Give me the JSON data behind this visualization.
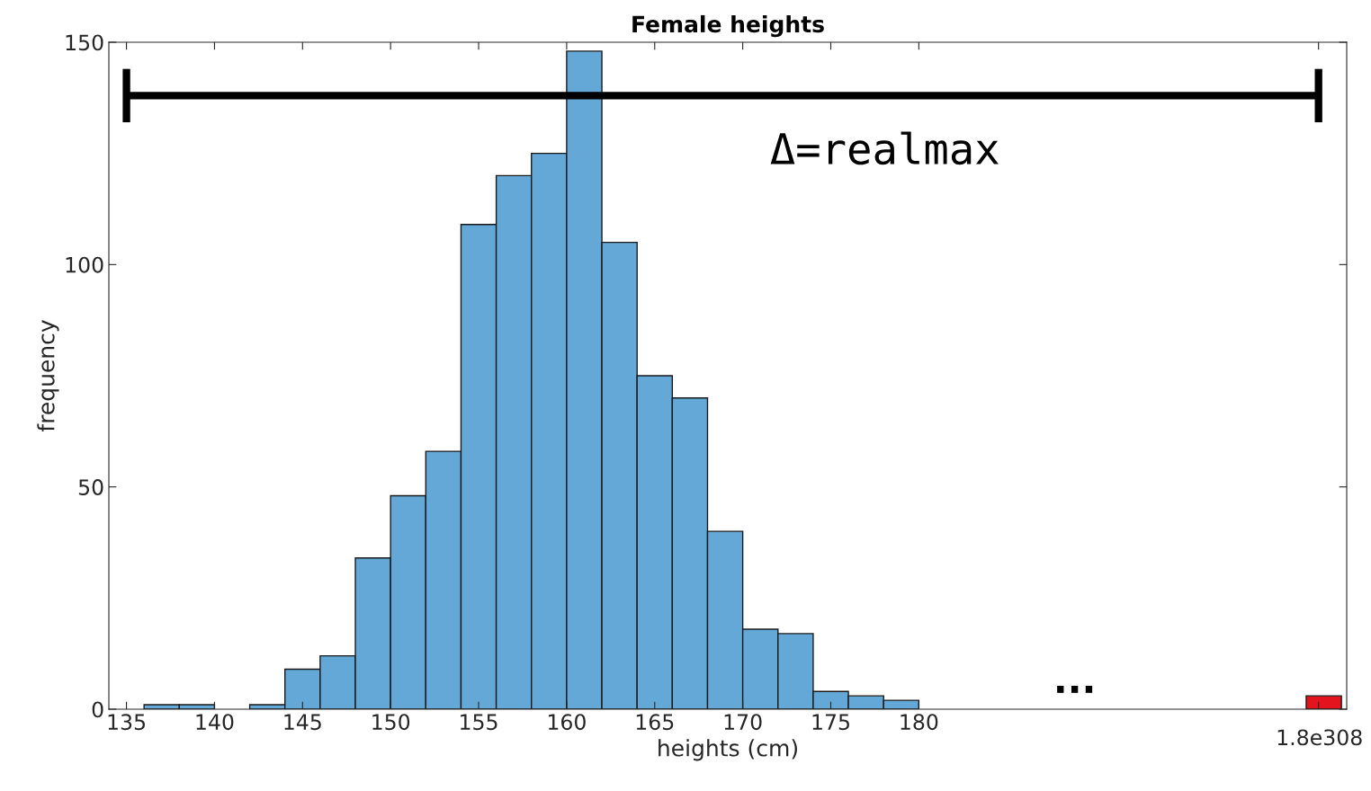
{
  "chart_data": {
    "type": "histogram",
    "title": "Female heights",
    "xlabel": "heights (cm)",
    "ylabel": "frequency",
    "bins": [
      136,
      138,
      140,
      142,
      144,
      146,
      148,
      150,
      152,
      154,
      156,
      158,
      160,
      162,
      164,
      166,
      168,
      170,
      172,
      174,
      176,
      178,
      180,
      202,
      204
    ],
    "values": [
      1,
      1,
      0,
      1,
      9,
      12,
      34,
      48,
      58,
      109,
      120,
      125,
      148,
      105,
      75,
      70,
      40,
      18,
      17,
      4,
      3,
      2,
      null,
      3
    ],
    "colors": [
      "#63a8d7",
      "#63a8d7",
      "#63a8d7",
      "#63a8d7",
      "#63a8d7",
      "#63a8d7",
      "#63a8d7",
      "#63a8d7",
      "#63a8d7",
      "#63a8d7",
      "#63a8d7",
      "#63a8d7",
      "#63a8d7",
      "#63a8d7",
      "#63a8d7",
      "#63a8d7",
      "#63a8d7",
      "#63a8d7",
      "#63a8d7",
      "#63a8d7",
      "#63a8d7",
      "#63a8d7",
      "#63a8d7",
      "#e3141d"
    ],
    "xlim": [
      134,
      204.3
    ],
    "ylim": [
      0,
      150
    ],
    "xticks": [
      135,
      140,
      145,
      150,
      155,
      160,
      165,
      170,
      175,
      180,
      {
        "value": 202.7,
        "label": null
      }
    ],
    "yticks": [
      0,
      50,
      100,
      150
    ],
    "series": [
      {
        "type": "line",
        "color": "#000000",
        "x": [
          135,
          202.7
        ],
        "values": [
          138,
          138
        ],
        "errors": [
          6,
          6
        ]
      }
    ],
    "annotations": [
      "Δ=realmax",
      "...",
      "1.8e308"
    ],
    "grid": false
  }
}
